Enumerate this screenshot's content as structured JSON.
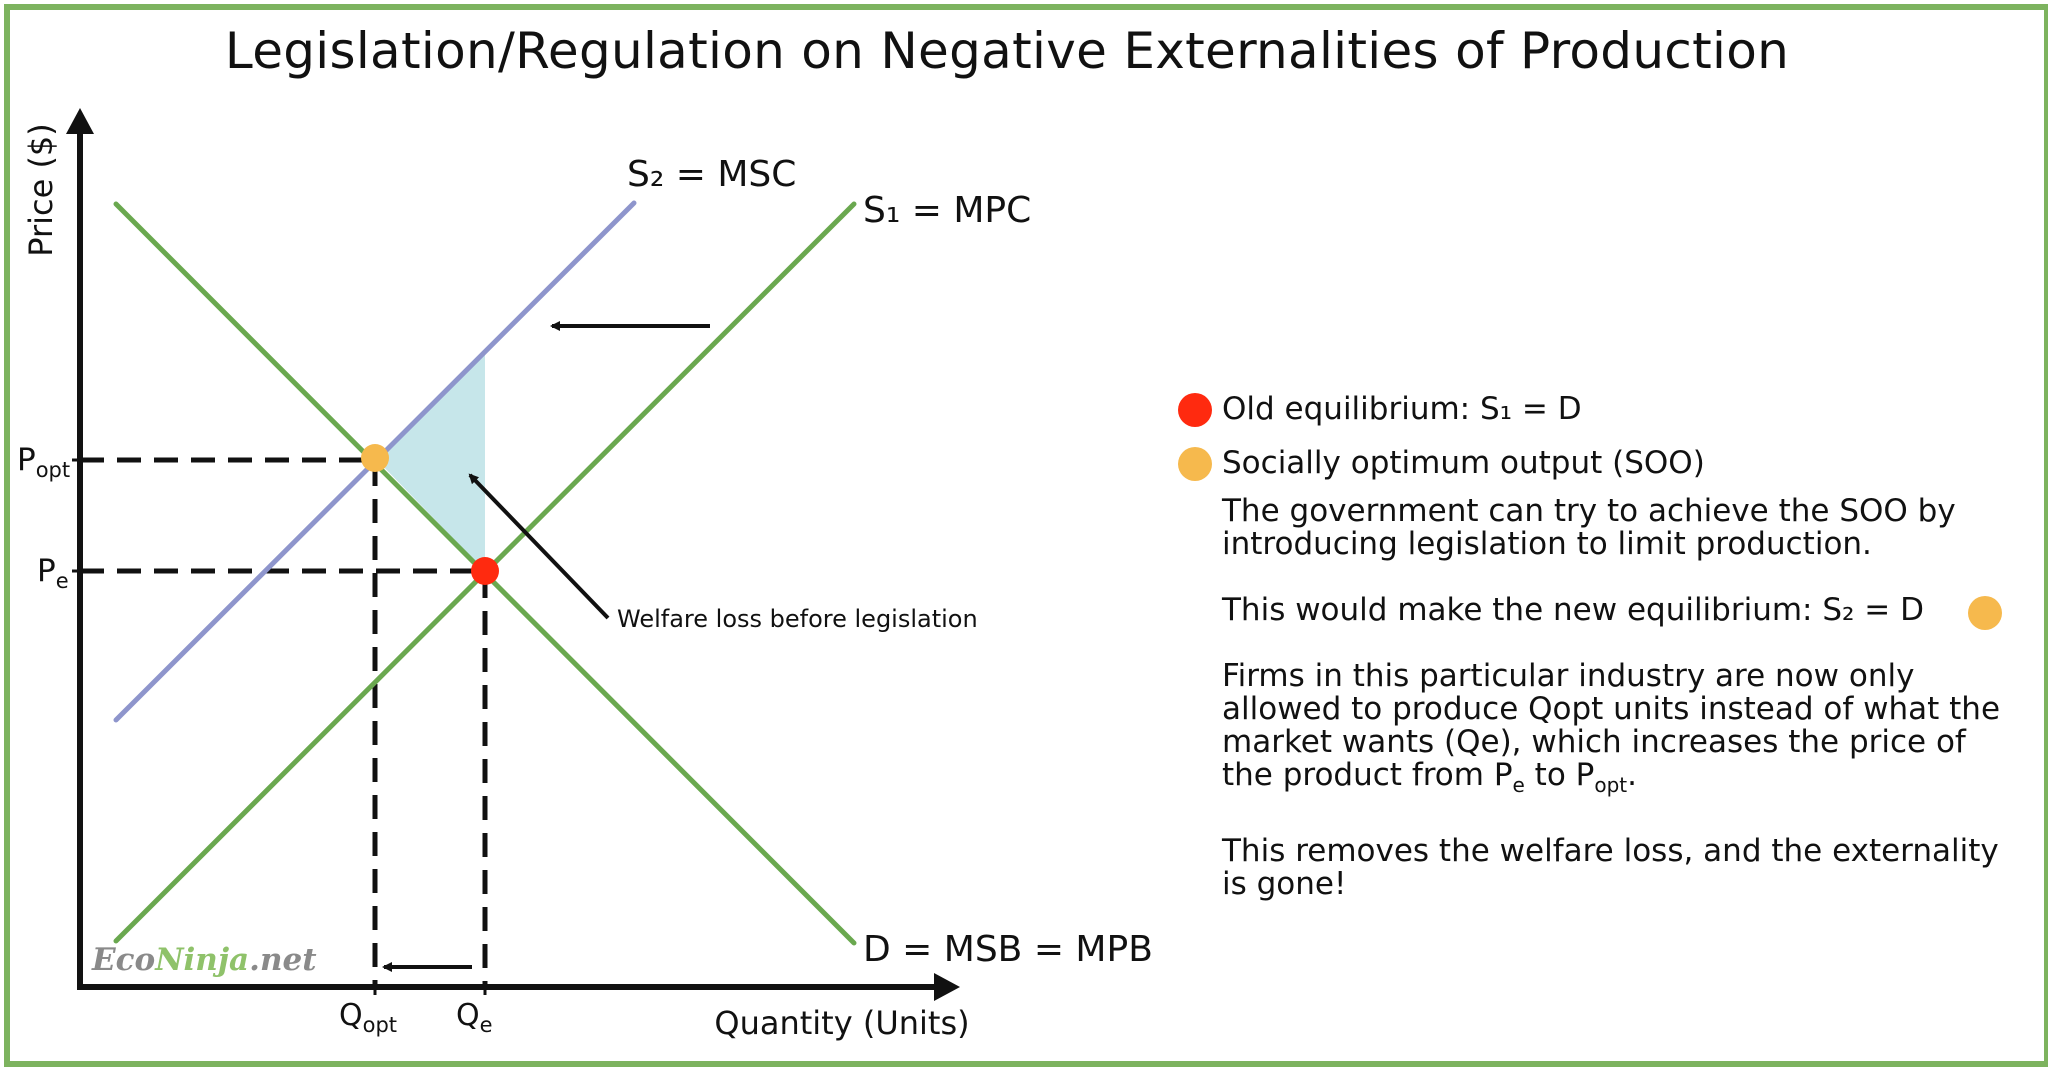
{
  "title": "Legislation/Regulation on Negative Externalities of Production",
  "colors": {
    "border": "#7db35f",
    "supply_private": "#6aa84f",
    "demand": "#6aa84f",
    "supply_social": "#8e95cc",
    "welfare_loss": "#c6e6ea",
    "old_equilibrium": "#ff2a0f",
    "optimum": "#f6b94d",
    "axis": "#111111"
  },
  "axes": {
    "y_label": "Price ($)",
    "x_label": "Quantity (Units)"
  },
  "curves": {
    "s2": "S₂ = MSC",
    "s1": "S₁ = MPC",
    "d": "D = MSB = MPB"
  },
  "ticks": {
    "p_opt": {
      "base": "P",
      "sub": "opt"
    },
    "p_e": {
      "base": "P",
      "sub": "e"
    },
    "q_opt": {
      "base": "Q",
      "sub": "opt"
    },
    "q_e": {
      "base": "Q",
      "sub": "e"
    }
  },
  "annotation": "Welfare loss before legislation",
  "watermark": {
    "part1": "Eco",
    "part2": "Ninja",
    "part3": ".net"
  },
  "legend": {
    "old_equilibrium": "Old equilibrium: S₁ = D",
    "optimum": "Socially optimum output (SOO)"
  },
  "notes": {
    "p1": "The government can try to achieve the SOO by introducing legislation to limit production.",
    "p2": "This would make the new equilibrium: S₂ = D",
    "p3_start": "Firms in this particular industry are now only allowed to produce Qopt units instead of what the market wants (Qe), which increases the price of the product from ",
    "p3_pe_base": "P",
    "p3_pe_sub": "e",
    "p3_mid": " to ",
    "p3_popt_base": "P",
    "p3_popt_sub": "opt",
    "p3_end": ".",
    "p4": "This removes the welfare loss, and the externality is gone!"
  }
}
